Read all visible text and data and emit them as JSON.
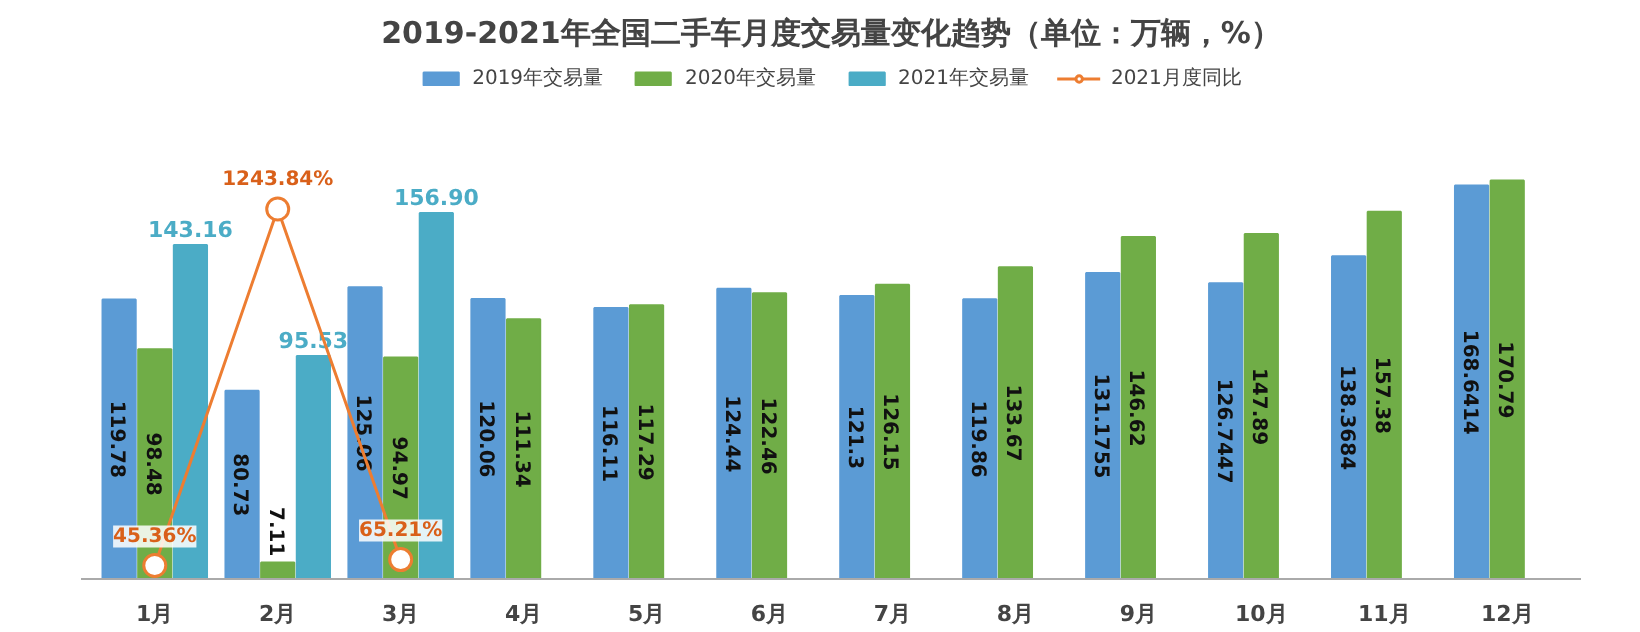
{
  "chart_data": {
    "type": "bar",
    "title": "2019-2021年全国二手车月度交易量变化趋势（单位：万辆，%）",
    "categories": [
      "1月",
      "2月",
      "3月",
      "4月",
      "5月",
      "6月",
      "7月",
      "8月",
      "9月",
      "10月",
      "11月",
      "12月"
    ],
    "series": [
      {
        "name": "2019年交易量",
        "color": "#5b9bd5",
        "values": [
          119.78,
          80.73,
          125.06,
          120.06,
          116.11,
          124.44,
          121.3,
          119.86,
          131.1755,
          126.7447,
          138.3684,
          168.6414
        ],
        "value_labels": [
          "119.78",
          "80.73",
          "125.06",
          "120.06",
          "116.11",
          "124.44",
          "121.3",
          "119.86",
          "131.1755",
          "126.7447",
          "138.3684",
          "168.6414"
        ]
      },
      {
        "name": "2020年交易量",
        "color": "#70ad47",
        "values": [
          98.48,
          7.11,
          94.97,
          111.34,
          117.29,
          122.46,
          126.15,
          133.67,
          146.62,
          147.89,
          157.38,
          170.79
        ],
        "value_labels": [
          "98.48",
          "7.11",
          "94.97",
          "111.34",
          "117.29",
          "122.46",
          "126.15",
          "133.67",
          "146.62",
          "147.89",
          "157.38",
          "170.79"
        ]
      },
      {
        "name": "2021年交易量",
        "color": "#4bacc6",
        "values": [
          143.16,
          95.53,
          156.9,
          null,
          null,
          null,
          null,
          null,
          null,
          null,
          null,
          null
        ],
        "value_labels": [
          "143.16",
          "95.53",
          "156.90",
          null,
          null,
          null,
          null,
          null,
          null,
          null,
          null,
          null
        ]
      },
      {
        "name": "2021月度同比",
        "type": "line",
        "axis": "y2",
        "color": "#ed7d31",
        "values": [
          45.36,
          1243.84,
          65.21,
          null,
          null,
          null,
          null,
          null,
          null,
          null,
          null,
          null
        ],
        "value_labels": [
          "45.36%",
          "1243.84%",
          "65.21%",
          null,
          null,
          null,
          null,
          null,
          null,
          null,
          null,
          null
        ]
      }
    ],
    "tick_labels": "x",
    "legend": "top",
    "marker": "circle"
  }
}
